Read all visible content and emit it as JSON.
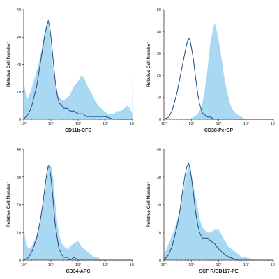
{
  "chart_data": [
    {
      "type": "area",
      "xlabel": "CD11b-CFS",
      "ylabel": "Relative Cell Number",
      "x_scale": "log",
      "xlim": [
        1,
        10000
      ],
      "ylim": [
        0,
        40
      ],
      "x_ticks": [
        {
          "v": 1,
          "label": "10⁰"
        },
        {
          "v": 10,
          "label": "10¹"
        },
        {
          "v": 100,
          "label": "10²"
        },
        {
          "v": 1000,
          "label": "10³"
        },
        {
          "v": 10000,
          "label": "10⁴"
        }
      ],
      "y_ticks": [
        0,
        10,
        20,
        30,
        40
      ],
      "series": [
        {
          "role": "filled",
          "color": "#a9d8f3",
          "x": [
            1,
            1.3,
            1.8,
            2.5,
            3.5,
            4.5,
            6,
            7,
            8,
            9,
            10,
            12,
            14,
            17,
            20,
            25,
            30,
            40,
            50,
            70,
            100,
            130,
            170,
            220,
            300,
            400,
            550,
            700,
            900,
            1200,
            1600,
            2100,
            2800,
            3700,
            5000,
            6500,
            8000,
            9000,
            9700,
            9800,
            10000
          ],
          "y": [
            14,
            7,
            10,
            15,
            20,
            25,
            32,
            35,
            36,
            32,
            27,
            19,
            14,
            10,
            8,
            7,
            7,
            8,
            9,
            12,
            14,
            16,
            15,
            12,
            10,
            7,
            5,
            4,
            3,
            2,
            2,
            2,
            3,
            3,
            4,
            5,
            4,
            3,
            2,
            19,
            0
          ]
        },
        {
          "role": "outline",
          "color": "#1e4a7a",
          "x": [
            1,
            1.5,
            2,
            3,
            4,
            5,
            6,
            7,
            8,
            9,
            10,
            12,
            14,
            17,
            20,
            25,
            30,
            40,
            50,
            70,
            100,
            150,
            200,
            300,
            500,
            1000,
            2000,
            5000,
            10000
          ],
          "y": [
            0,
            2,
            5,
            12,
            20,
            26,
            31,
            34,
            36,
            34,
            30,
            22,
            15,
            9,
            6,
            5,
            4,
            4,
            3,
            3,
            2,
            2,
            1,
            1,
            1,
            1,
            0,
            0,
            0
          ]
        }
      ]
    },
    {
      "type": "area",
      "xlabel": "CD38-PerCP",
      "ylabel": "Relative Cell Number",
      "x_scale": "log",
      "xlim": [
        1,
        10000
      ],
      "ylim": [
        0,
        50
      ],
      "x_ticks": [
        {
          "v": 1,
          "label": "10⁰"
        },
        {
          "v": 10,
          "label": "10¹"
        },
        {
          "v": 100,
          "label": "10²"
        },
        {
          "v": 1000,
          "label": "10³"
        },
        {
          "v": 10000,
          "label": "10⁴"
        }
      ],
      "y_ticks": [
        0,
        10,
        20,
        30,
        40,
        50
      ],
      "series": [
        {
          "role": "filled",
          "color": "#a9d8f3",
          "x": [
            1,
            2,
            4,
            8,
            12,
            16,
            20,
            25,
            30,
            35,
            40,
            45,
            50,
            60,
            70,
            80,
            100,
            130,
            160,
            200,
            250,
            300,
            400,
            500,
            700,
            1000,
            2000,
            10000
          ],
          "y": [
            0,
            0,
            0,
            0,
            1,
            2,
            4,
            7,
            12,
            18,
            24,
            30,
            35,
            40,
            44,
            42,
            36,
            27,
            19,
            13,
            8,
            5,
            3,
            2,
            1,
            0,
            0,
            0
          ]
        },
        {
          "role": "outline",
          "color": "#1e4a7a",
          "x": [
            1,
            1.5,
            2,
            3,
            4,
            5,
            6,
            7,
            8,
            9,
            10,
            12,
            14,
            17,
            20,
            25,
            30,
            40,
            50,
            70,
            100,
            200,
            500,
            1000,
            10000
          ],
          "y": [
            0,
            1,
            4,
            12,
            20,
            26,
            31,
            35,
            37,
            36,
            33,
            27,
            20,
            12,
            7,
            3,
            2,
            1,
            1,
            0,
            0,
            0,
            0,
            0,
            0
          ]
        }
      ]
    },
    {
      "type": "area",
      "xlabel": "CD34-APC",
      "ylabel": "Relative Cell Number",
      "x_scale": "log",
      "xlim": [
        1,
        10000
      ],
      "ylim": [
        0,
        40
      ],
      "x_ticks": [
        {
          "v": 1,
          "label": "10⁰"
        },
        {
          "v": 10,
          "label": "10¹"
        },
        {
          "v": 100,
          "label": "10²"
        },
        {
          "v": 1000,
          "label": "10³"
        },
        {
          "v": 10000,
          "label": "10⁴"
        }
      ],
      "y_ticks": [
        0,
        10,
        20,
        30,
        40
      ],
      "series": [
        {
          "role": "filled",
          "color": "#a9d8f3",
          "x": [
            1,
            1.2,
            1.5,
            2,
            3,
            4,
            5,
            6,
            7,
            8,
            9,
            10,
            12,
            14,
            17,
            20,
            25,
            30,
            40,
            50,
            70,
            100,
            130,
            170,
            220,
            300,
            400,
            550,
            700,
            1000,
            2000,
            10000
          ],
          "y": [
            12,
            6,
            4,
            5,
            9,
            14,
            19,
            24,
            29,
            33,
            35,
            34,
            30,
            22,
            14,
            9,
            6,
            5,
            4,
            5,
            6,
            7,
            5,
            4,
            3,
            2,
            1,
            1,
            0,
            0,
            0,
            0
          ]
        },
        {
          "role": "outline",
          "color": "#1e4a7a",
          "x": [
            1,
            1.5,
            2,
            3,
            4,
            5,
            6,
            7,
            8,
            9,
            10,
            12,
            14,
            17,
            20,
            25,
            30,
            40,
            50,
            70,
            100,
            200,
            500,
            1000,
            10000
          ],
          "y": [
            0,
            1,
            3,
            8,
            14,
            20,
            26,
            31,
            34,
            33,
            30,
            22,
            14,
            8,
            4,
            2,
            1,
            1,
            0,
            1,
            0,
            0,
            0,
            0,
            0
          ]
        }
      ]
    },
    {
      "type": "area",
      "xlabel": "SCF R/CD117-PE",
      "ylabel": "Relative Cell Number",
      "x_scale": "log",
      "xlim": [
        1,
        10000
      ],
      "ylim": [
        0,
        40
      ],
      "x_ticks": [
        {
          "v": 1,
          "label": "10⁰"
        },
        {
          "v": 10,
          "label": "10¹"
        },
        {
          "v": 100,
          "label": "10²"
        },
        {
          "v": 1000,
          "label": "10³"
        },
        {
          "v": 10000,
          "label": "10⁴"
        }
      ],
      "y_ticks": [
        0,
        10,
        20,
        30,
        40
      ],
      "series": [
        {
          "role": "filled",
          "color": "#a9d8f3",
          "x": [
            1,
            1.5,
            2,
            3,
            4,
            5,
            6,
            7,
            8,
            9,
            10,
            12,
            14,
            17,
            20,
            25,
            30,
            40,
            50,
            70,
            100,
            130,
            170,
            220,
            300,
            400,
            550,
            700,
            1000,
            2000,
            10000
          ],
          "y": [
            2,
            6,
            9,
            14,
            19,
            24,
            29,
            32,
            34,
            33,
            31,
            27,
            23,
            19,
            15,
            12,
            11,
            10,
            10,
            11,
            11,
            9,
            7,
            5,
            4,
            3,
            2,
            1,
            1,
            0,
            0
          ]
        },
        {
          "role": "outline",
          "color": "#1e4a7a",
          "x": [
            1,
            1.5,
            2,
            3,
            4,
            5,
            6,
            7,
            8,
            9,
            10,
            12,
            14,
            17,
            20,
            25,
            30,
            40,
            50,
            70,
            100,
            130,
            170,
            250,
            500,
            1000,
            10000
          ],
          "y": [
            0,
            2,
            5,
            12,
            19,
            26,
            31,
            34,
            35,
            33,
            30,
            24,
            18,
            13,
            10,
            8,
            8,
            8,
            7,
            6,
            4,
            3,
            2,
            1,
            0,
            0,
            0
          ]
        }
      ]
    }
  ]
}
